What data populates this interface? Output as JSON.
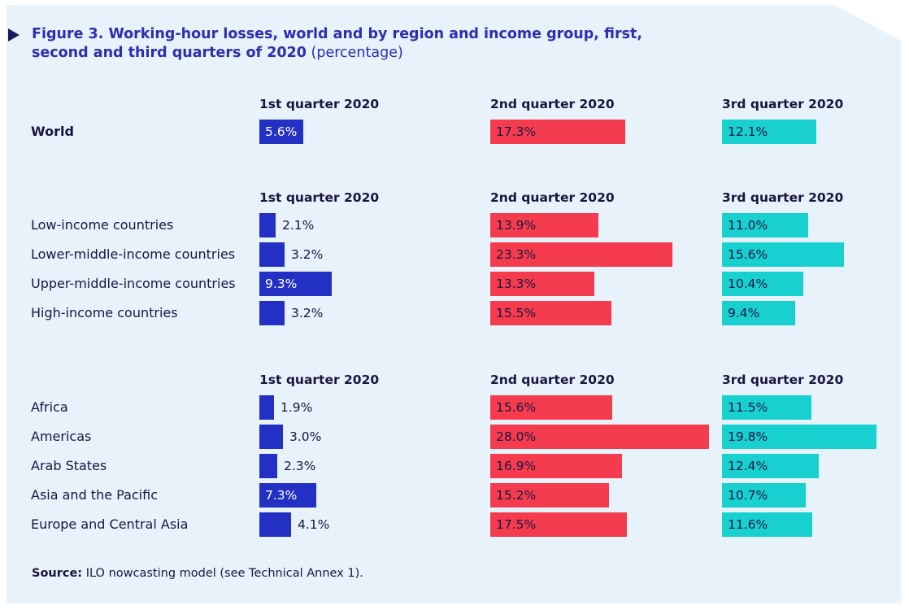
{
  "figure": {
    "title_bold_1": "Figure 3.  Working-hour losses, world and by region and income group, first,",
    "title_bold_2": "second and third quarters of 2020",
    "title_paren": "(percentage)"
  },
  "source": {
    "label": "Source:",
    "text": "ILO nowcasting model (see Technical Annex 1)."
  },
  "colors": {
    "q1": "#2330c4",
    "q2": "#f43c4e",
    "q3": "#18d0d0",
    "panel": "#e7f2fb",
    "title": "#2b2fb0"
  },
  "chart_data": {
    "type": "bar",
    "series": [
      {
        "name": "1st quarter 2020",
        "color": "#2330c4"
      },
      {
        "name": "2nd quarter 2020",
        "color": "#f43c4e"
      },
      {
        "name": "3rd quarter 2020",
        "color": "#18d0d0"
      }
    ],
    "groups": [
      {
        "rows": [
          {
            "label": "World",
            "bold": true,
            "values": [
              5.6,
              17.3,
              12.1
            ],
            "labels": [
              "5.6%",
              "17.3%",
              "12.1%"
            ]
          }
        ]
      },
      {
        "rows": [
          {
            "label": "Low-income countries",
            "values": [
              2.1,
              13.9,
              11.0
            ],
            "labels": [
              "2.1%",
              "13.9%",
              "11.0%"
            ]
          },
          {
            "label": "Lower-middle-income countries",
            "values": [
              3.2,
              23.3,
              15.6
            ],
            "labels": [
              "3.2%",
              "23.3%",
              "15.6%"
            ]
          },
          {
            "label": "Upper-middle-income countries",
            "values": [
              9.3,
              13.3,
              10.4
            ],
            "labels": [
              "9.3%",
              "13.3%",
              "10.4%"
            ]
          },
          {
            "label": "High-income countries",
            "values": [
              3.2,
              15.5,
              9.4
            ],
            "labels": [
              "3.2%",
              "15.5%",
              "9.4%"
            ]
          }
        ]
      },
      {
        "rows": [
          {
            "label": "Africa",
            "values": [
              1.9,
              15.6,
              11.5
            ],
            "labels": [
              "1.9%",
              "15.6%",
              "11.5%"
            ]
          },
          {
            "label": "Americas",
            "values": [
              3.0,
              28.0,
              19.8
            ],
            "labels": [
              "3.0%",
              "28.0%",
              "19.8%"
            ]
          },
          {
            "label": "Arab States",
            "values": [
              2.3,
              16.9,
              12.4
            ],
            "labels": [
              "2.3%",
              "16.9%",
              "12.4%"
            ]
          },
          {
            "label": "Asia and the Pacific",
            "values": [
              7.3,
              15.2,
              10.7
            ],
            "labels": [
              "7.3%",
              "15.2%",
              "10.7%"
            ]
          },
          {
            "label": "Europe and Central Asia",
            "values": [
              4.1,
              17.5,
              11.6
            ],
            "labels": [
              "4.1%",
              "17.5%",
              "11.6%"
            ]
          }
        ]
      }
    ]
  }
}
